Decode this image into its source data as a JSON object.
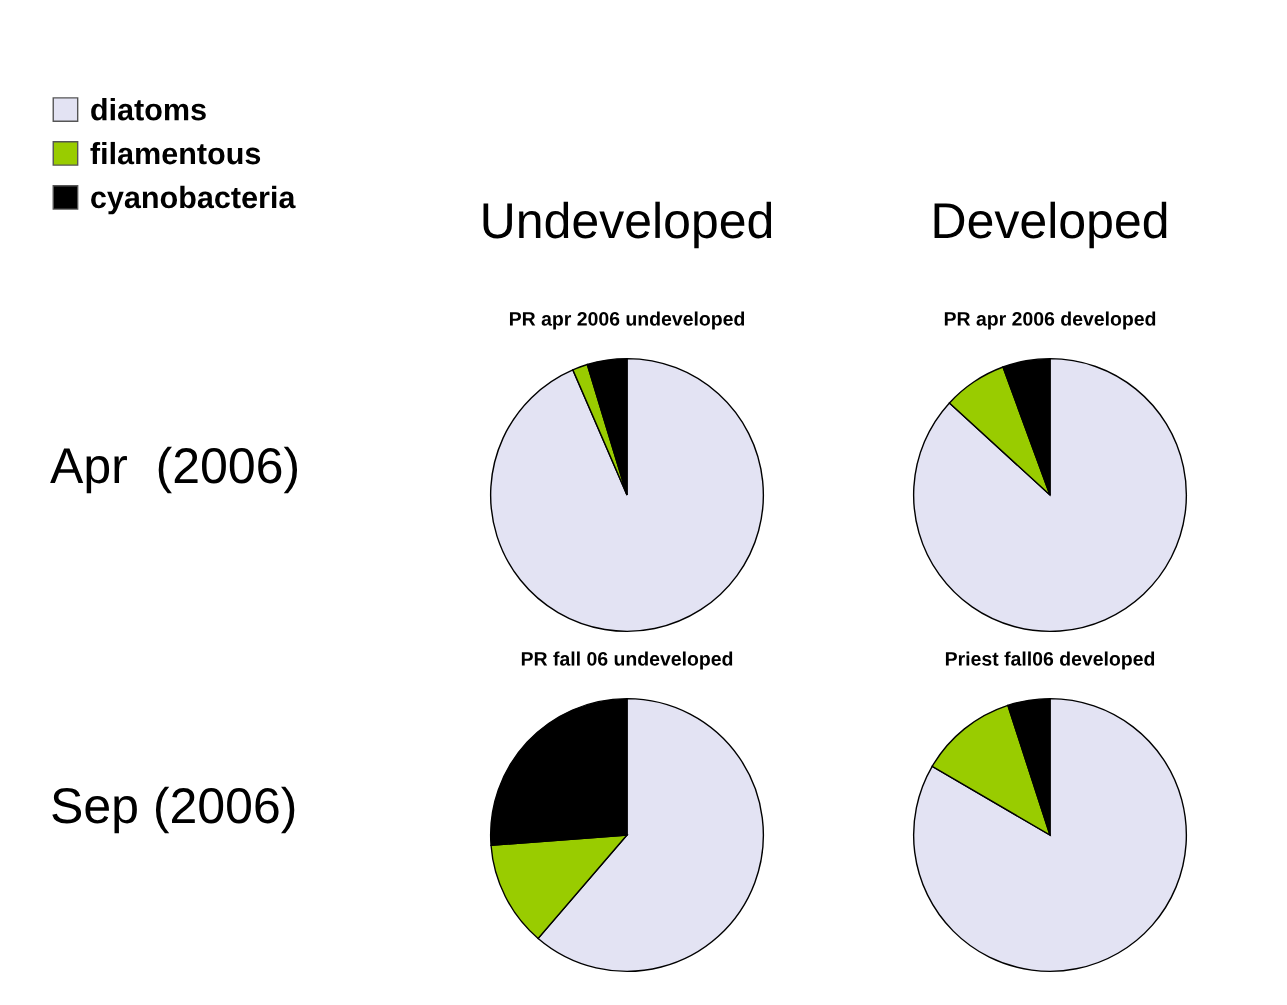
{
  "chart_data": [
    {
      "type": "pie",
      "title": "PR apr 2006 undeveloped",
      "categories": [
        "diatoms",
        "filamentous",
        "cyanobacteria"
      ],
      "values": [
        93.5,
        1.8,
        4.7
      ],
      "colors": [
        "#e3e3f3",
        "#99cc00",
        "#000000"
      ],
      "legend": "top left",
      "annotations": [
        "Undeveloped",
        "Apr  (2006)"
      ]
    },
    {
      "type": "pie",
      "title": "PR apr 2006 developed",
      "categories": [
        null,
        null,
        null
      ],
      "values": [
        86.8,
        7.6,
        5.6
      ],
      "colors": [
        "#e3e3f3",
        "#99cc00",
        "#000000"
      ],
      "annotations": [
        "Developed"
      ]
    },
    {
      "type": "pie",
      "title": "PR fall 06 undeveloped",
      "categories": [
        null,
        null,
        null
      ],
      "values": [
        61.3,
        12.5,
        26.2
      ],
      "colors": [
        "#e3e3f3",
        "#99cc00",
        "#000000"
      ],
      "annotations": [
        "Sep (2006)"
      ]
    },
    {
      "type": "pie",
      "title": "Priest fall06 developed",
      "categories": [
        null,
        null,
        null
      ],
      "values": [
        83.4,
        11.6,
        5.0
      ],
      "colors": [
        "#e3e3f3",
        "#99cc00",
        "#000000"
      ]
    }
  ]
}
